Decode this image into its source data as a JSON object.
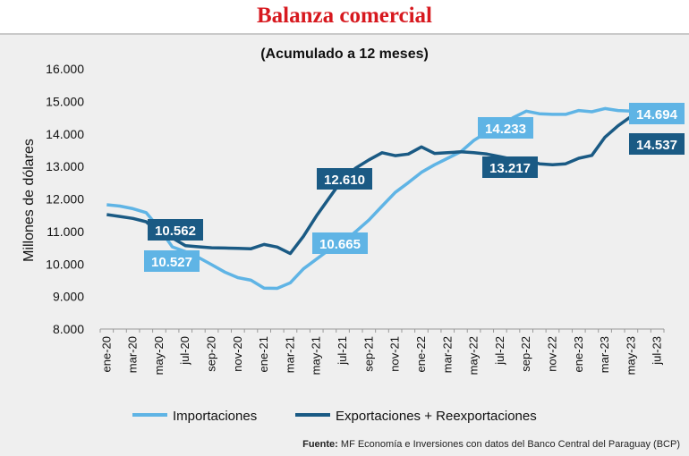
{
  "title": "Balanza comercial",
  "chart_data": {
    "type": "line",
    "subtitle": "(Acumulado a 12 meses)",
    "ylabel": "Millones de dólares",
    "ylim": [
      8000,
      16000
    ],
    "yticks": [
      "8.000",
      "9.000",
      "10.000",
      "11.000",
      "12.000",
      "13.000",
      "14.000",
      "15.000",
      "16.000"
    ],
    "ytick_values": [
      8000,
      9000,
      10000,
      11000,
      12000,
      13000,
      14000,
      15000,
      16000
    ],
    "x": [
      "ene-20",
      "feb-20",
      "mar-20",
      "abr-20",
      "may-20",
      "jun-20",
      "jul-20",
      "ago-20",
      "sep-20",
      "oct-20",
      "nov-20",
      "dic-20",
      "ene-21",
      "feb-21",
      "mar-21",
      "abr-21",
      "may-21",
      "jun-21",
      "jul-21",
      "ago-21",
      "sep-21",
      "oct-21",
      "nov-21",
      "dic-21",
      "ene-22",
      "feb-22",
      "mar-22",
      "abr-22",
      "may-22",
      "jun-22",
      "jul-22",
      "ago-22",
      "sep-22",
      "oct-22",
      "nov-22",
      "dic-22",
      "ene-23",
      "feb-23",
      "mar-23",
      "abr-23",
      "may-23",
      "jun-23",
      "jul-23"
    ],
    "xtick_labels": [
      "ene-20",
      "mar-20",
      "may-20",
      "jul-20",
      "sep-20",
      "nov-20",
      "ene-21",
      "mar-21",
      "may-21",
      "jul-21",
      "sep-21",
      "nov-21",
      "ene-22",
      "mar-22",
      "may-22",
      "jul-22",
      "sep-22",
      "nov-22",
      "ene-23",
      "mar-23",
      "may-23",
      "jul-23"
    ],
    "series": [
      {
        "name": "Importaciones",
        "color": "#5fb4e5",
        "values": [
          11820,
          11780,
          11700,
          11580,
          11100,
          10527,
          10380,
          10200,
          9980,
          9750,
          9580,
          9500,
          9260,
          9250,
          9420,
          9850,
          10150,
          10450,
          10665,
          11000,
          11350,
          11780,
          12200,
          12500,
          12820,
          13050,
          13250,
          13450,
          13800,
          14050,
          14233,
          14500,
          14700,
          14620,
          14600,
          14600,
          14720,
          14680,
          14780,
          14720,
          14700,
          14700,
          14694
        ],
        "labels": [
          {
            "index": 5,
            "text": "10.527"
          },
          {
            "index": 18,
            "text": "10.665"
          },
          {
            "index": 30,
            "text": "14.233"
          },
          {
            "index": 42,
            "text": "14.694"
          }
        ]
      },
      {
        "name": "Exportaciones + Reexportaciones",
        "color": "#1a5a84",
        "values": [
          11520,
          11460,
          11400,
          11300,
          10950,
          10800,
          10562,
          10530,
          10500,
          10490,
          10480,
          10470,
          10600,
          10520,
          10320,
          10850,
          11480,
          12050,
          12610,
          12950,
          13200,
          13420,
          13330,
          13380,
          13600,
          13400,
          13420,
          13450,
          13420,
          13380,
          13300,
          13217,
          13200,
          13080,
          13050,
          13080,
          13250,
          13340,
          13900,
          14250,
          14537,
          14537,
          14537
        ],
        "labels": [
          {
            "index": 6,
            "text": "10.562"
          },
          {
            "index": 18,
            "text": "12.610"
          },
          {
            "index": 31,
            "text": "13.217"
          },
          {
            "index": 42,
            "text": "14.537"
          }
        ]
      }
    ],
    "grid": false,
    "legend": "bottom"
  },
  "source": {
    "label": "Fuente:",
    "text": "MF Economía e Inversiones con datos del Banco Central del Paraguay (BCP)"
  }
}
